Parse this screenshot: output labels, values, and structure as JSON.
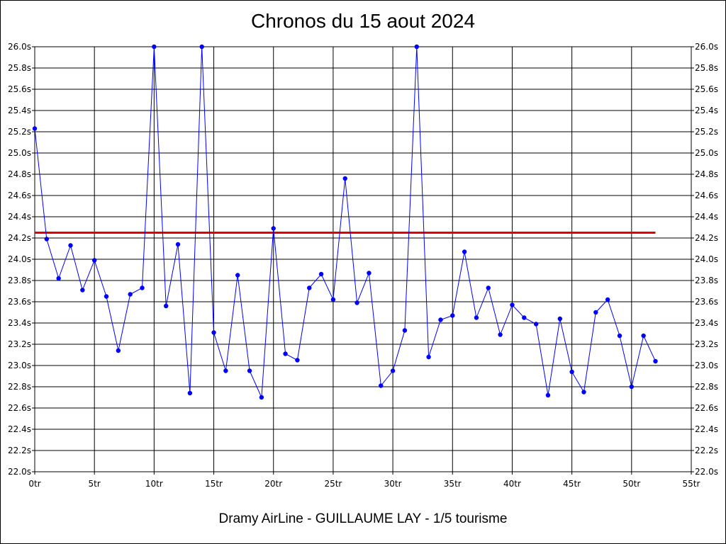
{
  "chart_data": {
    "type": "line",
    "title": "Chronos du 15 aout 2024",
    "footer": "Dramy AirLine - GUILLAUME LAY - 1/5 tourisme",
    "xlabel": "",
    "ylabel": "",
    "xlim": [
      0,
      55
    ],
    "ylim": [
      22.0,
      26.0
    ],
    "x_ticks": [
      0,
      5,
      10,
      15,
      20,
      25,
      30,
      35,
      40,
      45,
      50,
      55
    ],
    "x_tick_labels": [
      "0tr",
      "5tr",
      "10tr",
      "15tr",
      "20tr",
      "25tr",
      "30tr",
      "35tr",
      "40tr",
      "45tr",
      "50tr",
      "55tr"
    ],
    "y_ticks": [
      22.0,
      22.2,
      22.4,
      22.6,
      22.8,
      23.0,
      23.2,
      23.4,
      23.6,
      23.8,
      24.0,
      24.2,
      24.4,
      24.6,
      24.8,
      25.0,
      25.2,
      25.4,
      25.6,
      25.8,
      26.0
    ],
    "y_tick_labels": [
      "22.0s",
      "22.2s",
      "22.4s",
      "22.6s",
      "22.8s",
      "23.0s",
      "23.2s",
      "23.4s",
      "23.6s",
      "23.8s",
      "24.0s",
      "24.2s",
      "24.4s",
      "24.6s",
      "24.8s",
      "25.0s",
      "25.2s",
      "25.4s",
      "25.6s",
      "25.8s",
      "26.0s"
    ],
    "grid": true,
    "colors": {
      "series": "#0000ff",
      "reference": "#e60000",
      "grid": "#000000"
    },
    "series": [
      {
        "x": [
          0,
          1,
          2,
          3,
          4,
          5,
          6,
          7,
          8,
          9,
          10,
          11,
          12,
          13,
          14,
          15,
          16,
          17,
          18,
          19,
          20,
          21,
          22,
          23,
          24,
          25,
          26,
          27,
          28,
          29,
          30,
          31,
          32,
          33,
          34,
          35,
          36,
          37,
          38,
          39,
          40,
          41,
          42,
          43,
          44,
          45,
          46,
          47,
          48,
          49,
          50,
          51,
          52
        ],
        "values": [
          25.23,
          24.19,
          23.82,
          24.13,
          23.71,
          23.99,
          23.65,
          23.14,
          23.67,
          23.73,
          26.0,
          23.56,
          24.14,
          22.74,
          26.0,
          23.31,
          22.95,
          23.85,
          22.95,
          22.7,
          24.29,
          23.11,
          23.05,
          23.73,
          23.86,
          23.62,
          24.76,
          23.59,
          23.87,
          22.81,
          22.95,
          23.33,
          26.0,
          23.08,
          23.43,
          23.47,
          24.07,
          23.45,
          23.73,
          23.29,
          23.57,
          23.45,
          23.39,
          22.72,
          23.44,
          22.94,
          22.75,
          23.5,
          23.62,
          23.28,
          22.8,
          23.28,
          23.04
        ]
      }
    ],
    "reference_line": {
      "y": 24.25,
      "x_start": 0,
      "x_end": 52
    }
  }
}
